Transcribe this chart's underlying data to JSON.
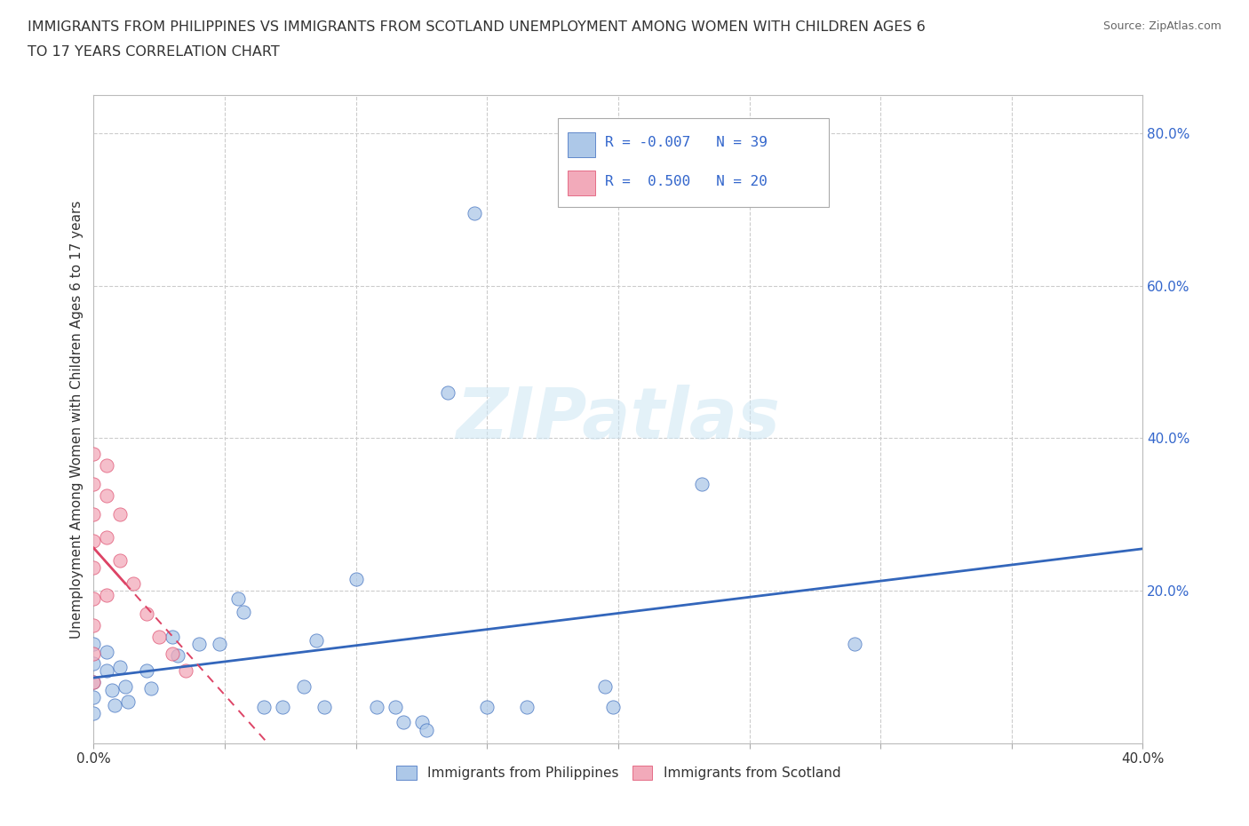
{
  "title_line1": "IMMIGRANTS FROM PHILIPPINES VS IMMIGRANTS FROM SCOTLAND UNEMPLOYMENT AMONG WOMEN WITH CHILDREN AGES 6",
  "title_line2": "TO 17 YEARS CORRELATION CHART",
  "source": "Source: ZipAtlas.com",
  "ylabel": "Unemployment Among Women with Children Ages 6 to 17 years",
  "xlim": [
    0.0,
    0.4
  ],
  "ylim": [
    0.0,
    0.85
  ],
  "xticks": [
    0.0,
    0.05,
    0.1,
    0.15,
    0.2,
    0.25,
    0.3,
    0.35,
    0.4
  ],
  "watermark": "ZIPatlas",
  "philippines_R": -0.007,
  "philippines_N": 39,
  "scotland_R": 0.5,
  "scotland_N": 20,
  "philippines_color": "#adc8e8",
  "scotland_color": "#f2aaba",
  "trend_philippines_color": "#3366bb",
  "trend_scotland_color": "#dd4466",
  "philippines_points": [
    [
      0.0,
      0.13
    ],
    [
      0.0,
      0.105
    ],
    [
      0.0,
      0.08
    ],
    [
      0.0,
      0.06
    ],
    [
      0.0,
      0.04
    ],
    [
      0.005,
      0.12
    ],
    [
      0.005,
      0.095
    ],
    [
      0.007,
      0.07
    ],
    [
      0.008,
      0.05
    ],
    [
      0.01,
      0.1
    ],
    [
      0.012,
      0.075
    ],
    [
      0.013,
      0.055
    ],
    [
      0.02,
      0.095
    ],
    [
      0.022,
      0.072
    ],
    [
      0.03,
      0.14
    ],
    [
      0.032,
      0.115
    ],
    [
      0.04,
      0.13
    ],
    [
      0.048,
      0.13
    ],
    [
      0.055,
      0.19
    ],
    [
      0.057,
      0.172
    ],
    [
      0.065,
      0.048
    ],
    [
      0.072,
      0.048
    ],
    [
      0.08,
      0.075
    ],
    [
      0.085,
      0.135
    ],
    [
      0.088,
      0.048
    ],
    [
      0.1,
      0.215
    ],
    [
      0.108,
      0.048
    ],
    [
      0.115,
      0.048
    ],
    [
      0.118,
      0.028
    ],
    [
      0.125,
      0.028
    ],
    [
      0.127,
      0.018
    ],
    [
      0.135,
      0.46
    ],
    [
      0.145,
      0.695
    ],
    [
      0.15,
      0.048
    ],
    [
      0.165,
      0.048
    ],
    [
      0.195,
      0.075
    ],
    [
      0.198,
      0.048
    ],
    [
      0.232,
      0.34
    ],
    [
      0.29,
      0.13
    ]
  ],
  "scotland_points": [
    [
      0.0,
      0.38
    ],
    [
      0.0,
      0.34
    ],
    [
      0.0,
      0.3
    ],
    [
      0.0,
      0.265
    ],
    [
      0.0,
      0.23
    ],
    [
      0.0,
      0.19
    ],
    [
      0.0,
      0.155
    ],
    [
      0.0,
      0.118
    ],
    [
      0.0,
      0.08
    ],
    [
      0.005,
      0.365
    ],
    [
      0.005,
      0.325
    ],
    [
      0.005,
      0.27
    ],
    [
      0.005,
      0.195
    ],
    [
      0.01,
      0.3
    ],
    [
      0.01,
      0.24
    ],
    [
      0.015,
      0.21
    ],
    [
      0.02,
      0.17
    ],
    [
      0.025,
      0.14
    ],
    [
      0.03,
      0.118
    ],
    [
      0.035,
      0.095
    ]
  ]
}
